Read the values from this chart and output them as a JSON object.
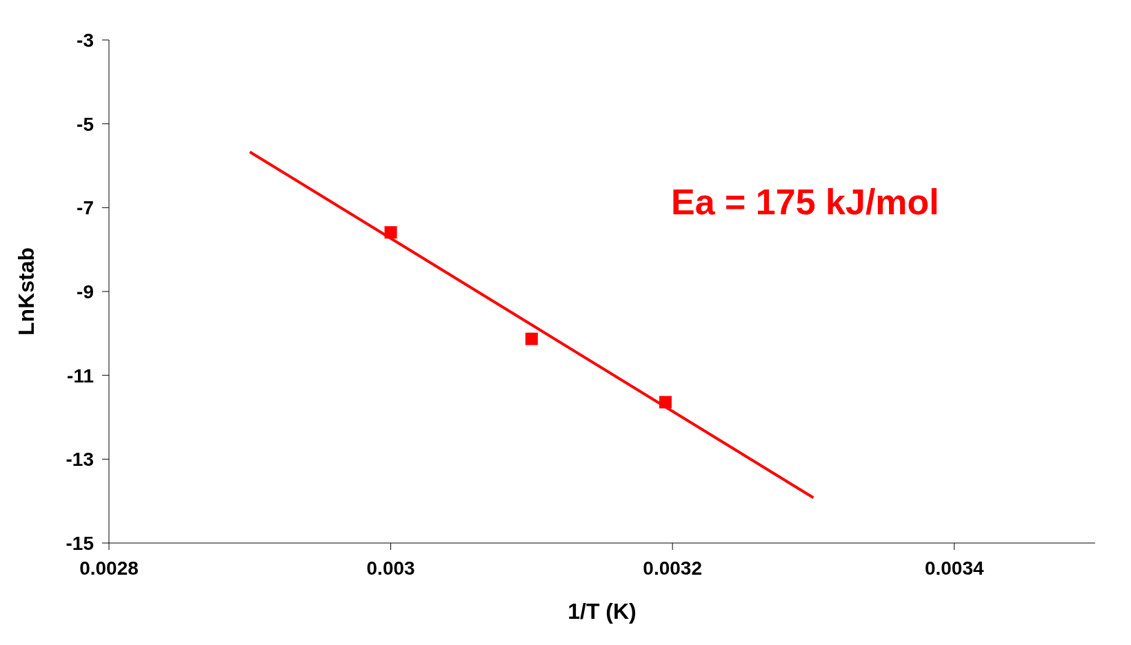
{
  "chart_data": {
    "type": "scatter",
    "xlabel": "1/T (K)",
    "ylabel": "LnKstab",
    "xlim": [
      0.0028,
      0.0035
    ],
    "xticks": [
      0.0028,
      0.003,
      0.0032,
      0.0034
    ],
    "ylim": [
      -15,
      -3
    ],
    "yticks": [
      -15,
      -13,
      -11,
      -9,
      -7,
      -5,
      -3
    ],
    "annotations": [
      "Ea = 175 kJ/mol"
    ],
    "series": [
      {
        "marker": "square",
        "color": "#ff0000",
        "x": [
          0.003,
          0.0031,
          0.003195
        ],
        "values": [
          -7.59,
          -10.13,
          -11.64
        ]
      },
      {
        "type": "line",
        "color": "#ff0000",
        "x": [
          0.0029,
          0.0033
        ],
        "values": [
          -5.67,
          -13.92
        ]
      }
    ]
  }
}
